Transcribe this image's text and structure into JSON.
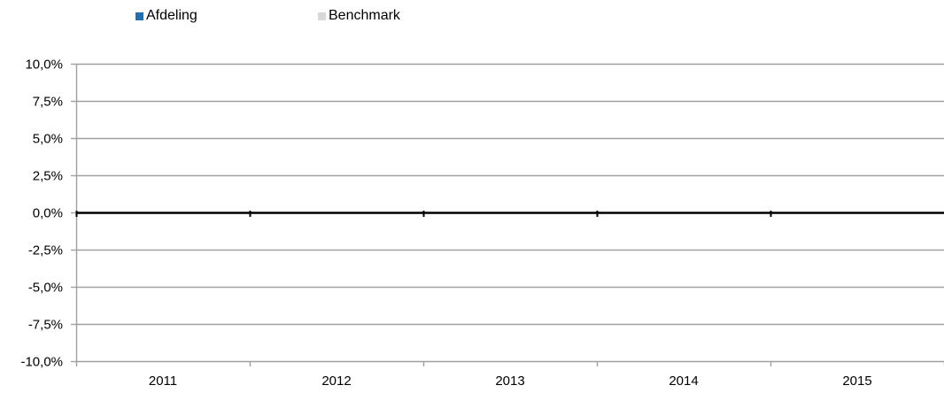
{
  "chart_data": {
    "type": "bar",
    "title": "",
    "xlabel": "",
    "ylabel": "",
    "categories": [
      "2011",
      "2012",
      "2013",
      "2014",
      "2015"
    ],
    "series": [
      {
        "name": "Afdeling",
        "color": "#1F6FB5",
        "values": [
          0,
          0,
          0,
          0,
          0
        ]
      },
      {
        "name": "Benchmark",
        "color": "#D9D9D9",
        "values": [
          0,
          0,
          0,
          0,
          0
        ]
      }
    ],
    "ylim": [
      -10.0,
      10.0
    ],
    "yticks": [
      10.0,
      7.5,
      5.0,
      2.5,
      0.0,
      -2.5,
      -5.0,
      -7.5,
      -10.0
    ],
    "ytick_labels": [
      "10,0%",
      "7,5%",
      "5,0%",
      "2,5%",
      "0,0%",
      "-2,5%",
      "-5,0%",
      "-7,5%",
      "-10,0%"
    ],
    "grid": true,
    "legend_position": "top-left",
    "colors": {
      "gridline": "#A0A0A0",
      "axis": "#000000"
    }
  }
}
